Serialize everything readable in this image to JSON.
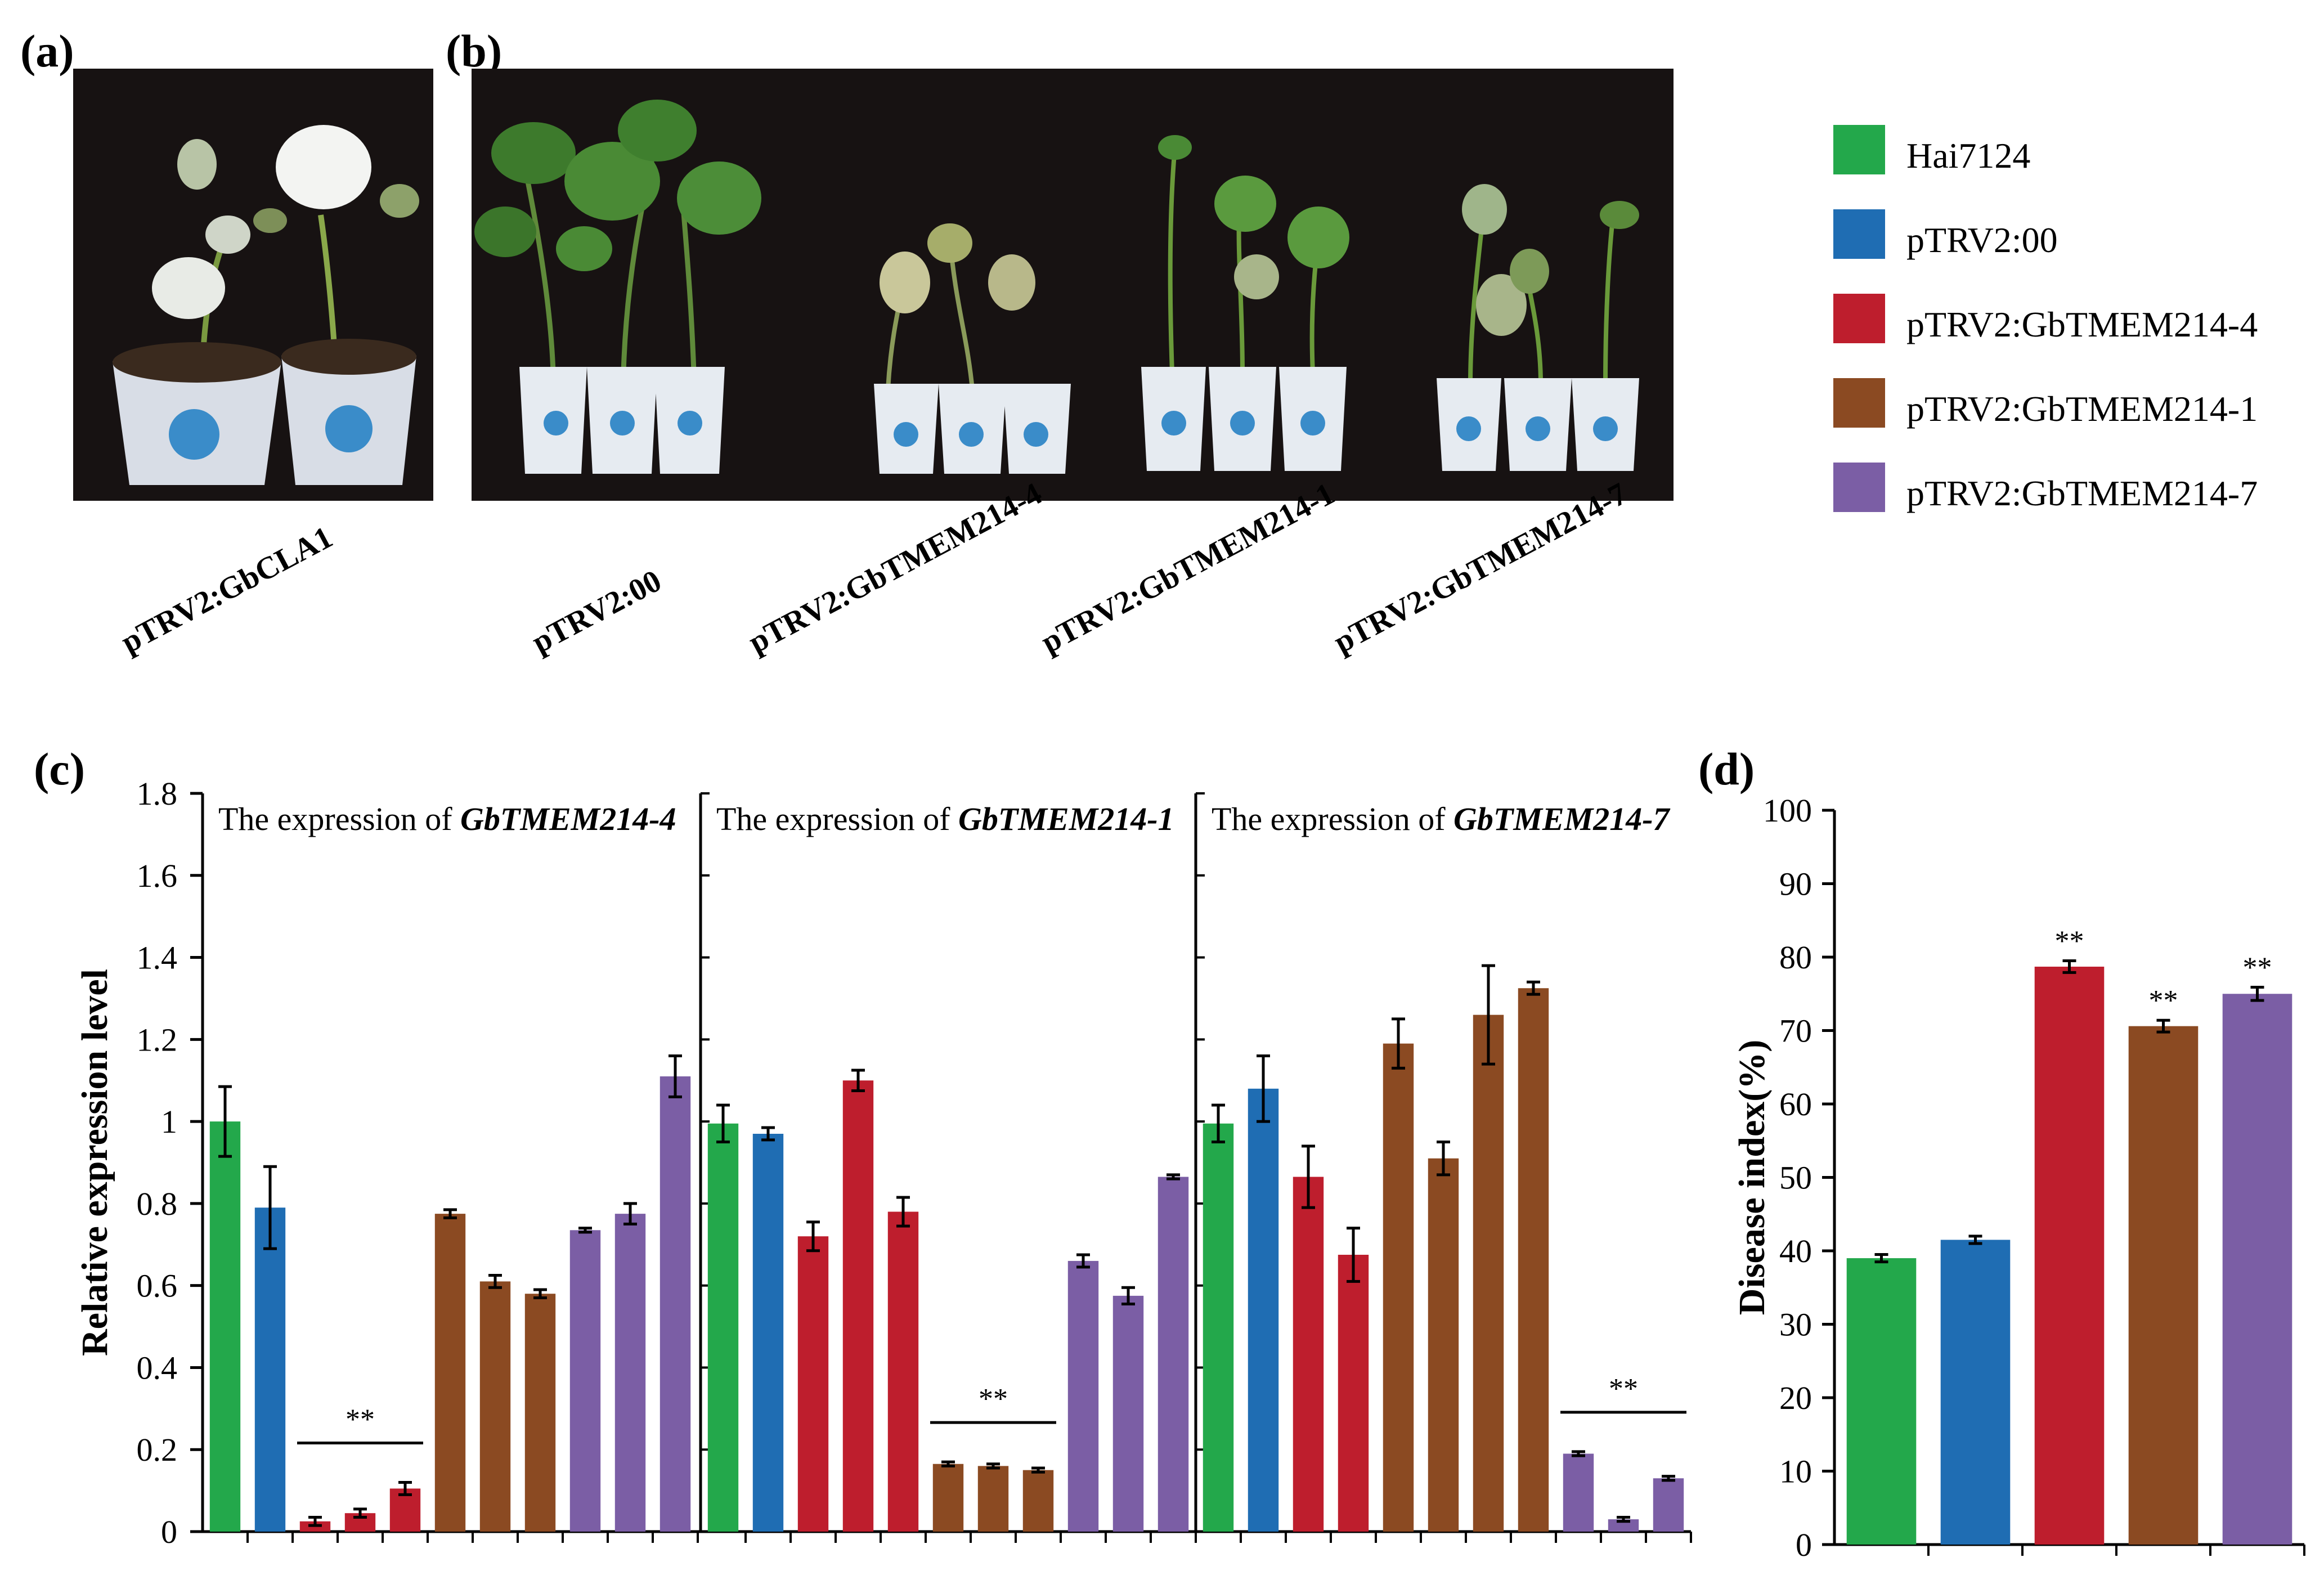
{
  "panels": {
    "a": "(a)",
    "b": "(b)",
    "c": "(c)",
    "d": "(d)"
  },
  "captions": {
    "a": "pTRV2:GbCLA1",
    "b": [
      "pTRV2:00",
      "pTRV2:GbTMEM214-4",
      "pTRV2:GbTMEM214-1",
      "pTRV2:GbTMEM214-7"
    ]
  },
  "legend": [
    {
      "label": "Hai7124",
      "color": "#23a84b"
    },
    {
      "label": "pTRV2:00",
      "color": "#1f6db3"
    },
    {
      "label": "pTRV2:GbTMEM214-4",
      "color": "#be1e2d"
    },
    {
      "label": "pTRV2:GbTMEM214-1",
      "color": "#8b4a22"
    },
    {
      "label": "pTRV2:GbTMEM214-7",
      "color": "#7b5ea5"
    }
  ],
  "chart_data": [
    {
      "type": "bar",
      "panel": "(c)",
      "ylabel": "Relative expression level",
      "ylim": [
        0,
        1.8
      ],
      "yticks": [
        "0",
        "0.2",
        "0.4",
        "0.6",
        "0.8",
        "1",
        "1.2",
        "1.4",
        "1.6",
        "1.8"
      ],
      "significance": "**",
      "subplots": [
        {
          "title_prefix": "The expression of ",
          "title_gene": "GbTMEM214-4",
          "values": [
            1.0,
            0.79,
            0.025,
            0.045,
            0.105,
            0.775,
            0.61,
            0.58,
            0.735,
            0.775,
            1.11
          ],
          "errors": [
            0.085,
            0.1,
            0.01,
            0.01,
            0.015,
            0.01,
            0.015,
            0.01,
            0.005,
            0.025,
            0.05
          ],
          "groups": [
            0,
            1,
            2,
            2,
            2,
            3,
            3,
            3,
            4,
            4,
            4
          ],
          "sig_bars": [
            2,
            4
          ]
        },
        {
          "title_prefix": "The expression of ",
          "title_gene": "GbTMEM214-1",
          "values": [
            0.995,
            0.97,
            0.72,
            1.1,
            0.78,
            0.165,
            0.16,
            0.15,
            0.66,
            0.575,
            0.865
          ],
          "errors": [
            0.045,
            0.015,
            0.035,
            0.025,
            0.035,
            0.005,
            0.005,
            0.005,
            0.015,
            0.02,
            0.005
          ],
          "groups": [
            0,
            1,
            2,
            2,
            2,
            3,
            3,
            3,
            4,
            4,
            4
          ],
          "sig_bars": [
            5,
            7
          ]
        },
        {
          "title_prefix": "The expression of ",
          "title_gene": "GbTMEM214-7",
          "values": [
            0.995,
            1.08,
            0.865,
            0.675,
            1.19,
            0.91,
            1.26,
            1.325,
            0.19,
            0.03,
            0.13
          ],
          "errors": [
            0.045,
            0.08,
            0.075,
            0.065,
            0.06,
            0.04,
            0.12,
            0.015,
            0.005,
            0.005,
            0.005
          ],
          "groups": [
            0,
            1,
            2,
            2,
            3,
            3,
            3,
            3,
            4,
            4,
            4
          ],
          "sig_bars": [
            8,
            10
          ]
        }
      ]
    },
    {
      "type": "bar",
      "panel": "(d)",
      "ylabel": "Disease index(%)",
      "ylim": [
        0,
        100
      ],
      "yticks": [
        "0",
        "10",
        "20",
        "30",
        "40",
        "50",
        "60",
        "70",
        "80",
        "90",
        "100"
      ],
      "categories": [
        "Hai7124",
        "pTRV2:00",
        "pTRV2:GbTMEM214-4",
        "pTRV2:GbTMEM214-1",
        "pTRV2:GbTMEM214-7"
      ],
      "values": [
        39.0,
        41.5,
        78.7,
        70.6,
        75.0
      ],
      "errors": [
        0.5,
        0.5,
        0.8,
        0.8,
        0.9
      ],
      "labels": [
        "",
        "",
        "**",
        "**",
        "**"
      ]
    }
  ]
}
